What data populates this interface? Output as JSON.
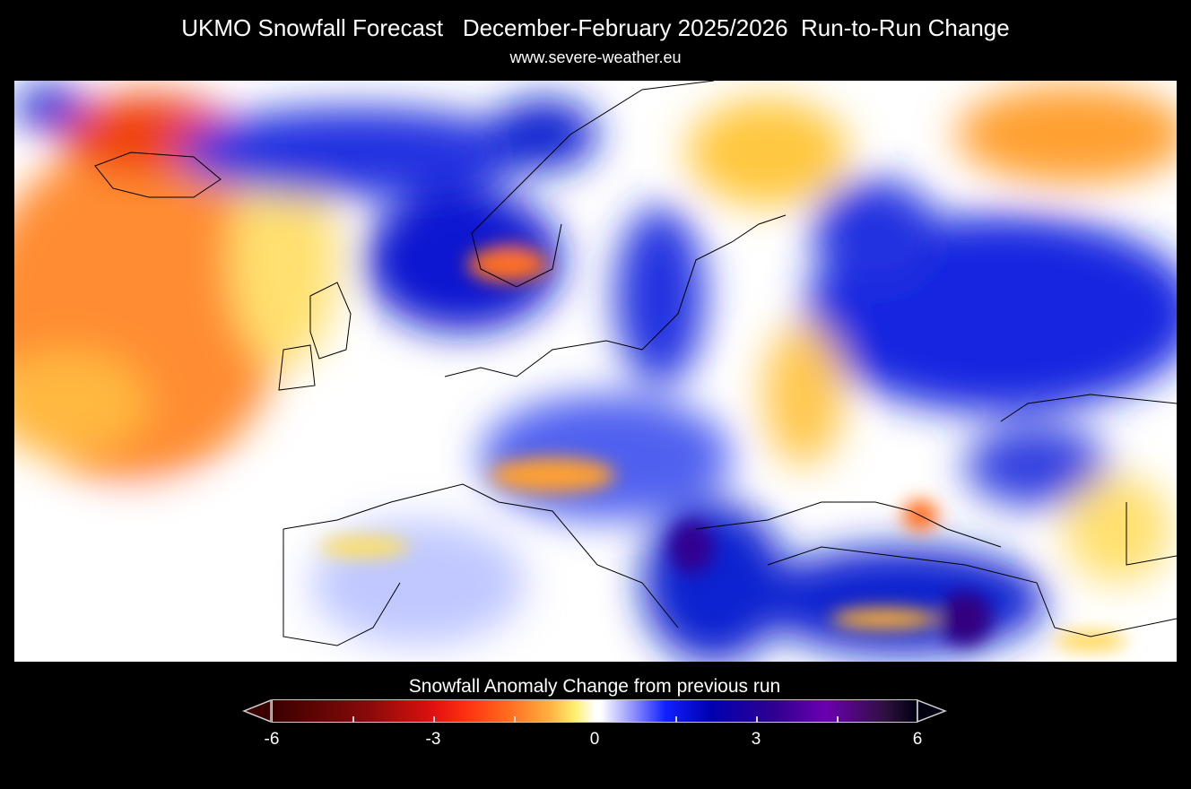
{
  "header": {
    "title": "UKMO Snowfall Forecast   December-February 2025/2026  Run-to-Run Change",
    "subtitle": "www.severe-weather.eu"
  },
  "colorbar": {
    "title": "Snowfall Anomaly Change from previous run",
    "ticks": [
      "-6",
      "-3",
      "0",
      "3",
      "6"
    ],
    "range": [
      -6,
      6
    ],
    "colors": {
      "low": "#3a0000",
      "mid_low": "#ff3010",
      "zero": "#ffffff",
      "mid_high": "#1020ff",
      "high": "#000010"
    }
  },
  "map": {
    "region": "Europe",
    "background": "#ffffff"
  }
}
